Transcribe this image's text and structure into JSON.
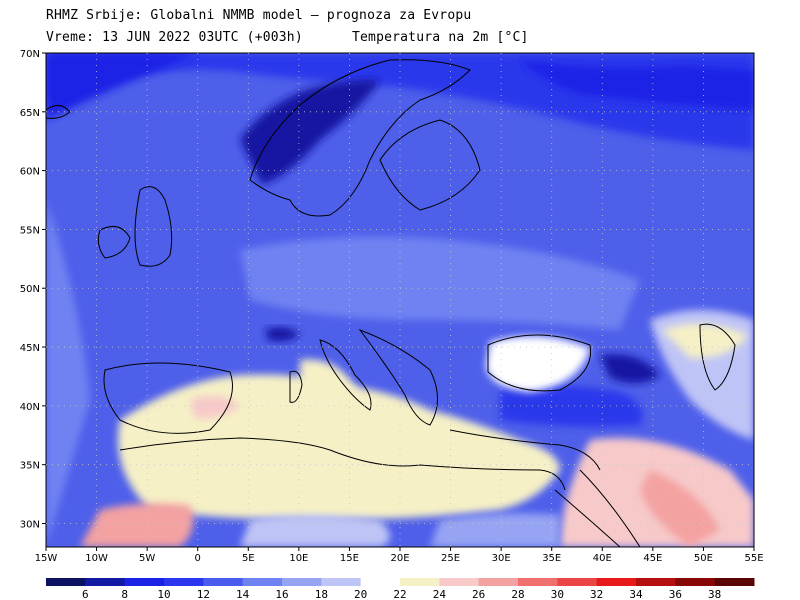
{
  "header": {
    "title": "RHMZ Srbije: Globalni NMMB model — prognoza za Evropu",
    "valid_time": "Vreme: 13 JUN 2022 03UTC (+003h)",
    "variable": "Temperatura na 2m [°C]"
  },
  "map": {
    "lon_range": [
      -15,
      55
    ],
    "lat_range": [
      28,
      70
    ],
    "lon_labels": [
      "15W",
      "10W",
      "5W",
      "0",
      "5E",
      "10E",
      "15E",
      "20E",
      "25E",
      "30E",
      "35E",
      "40E",
      "45E",
      "50E",
      "55E"
    ],
    "lat_labels": [
      "30N",
      "35N",
      "40N",
      "45N",
      "50N",
      "55N",
      "60N",
      "65N",
      "70N"
    ],
    "grid": true
  },
  "legend": {
    "tick_labels": [
      "6",
      "8",
      "10",
      "12",
      "14",
      "16",
      "18",
      "20",
      "22",
      "24",
      "26",
      "28",
      "30",
      "32",
      "34",
      "36",
      "38"
    ],
    "colors": [
      "#0c1161",
      "#1219a3",
      "#1a22e6",
      "#2a37ec",
      "#4a5cf0",
      "#6f82f2",
      "#97a4f4",
      "#bfc4f6",
      "#ffffff",
      "#f5f0c6",
      "#f7c9c9",
      "#f4a1a1",
      "#f07070",
      "#ea4646",
      "#e61a1a",
      "#b50f0f",
      "#870707",
      "#5c0404"
    ]
  },
  "colors": {
    "sea_base": "#4e5fea",
    "land_warm": "#f4efc6",
    "coastline": "#000000"
  }
}
